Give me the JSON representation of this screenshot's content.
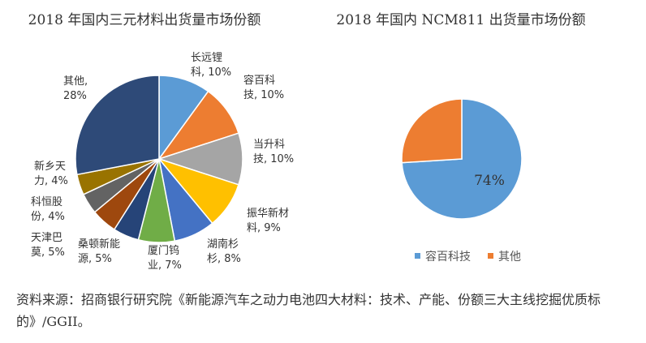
{
  "chart_data": [
    {
      "type": "pie",
      "title": "2018 年国内三元材料出货量市场份额",
      "slices": [
        {
          "label": [
            "长远锂",
            "科, 10%"
          ],
          "value": 10,
          "color": "#5b9bd5"
        },
        {
          "label": [
            "容百科",
            "技, 10%"
          ],
          "value": 10,
          "color": "#ed7d31"
        },
        {
          "label": [
            "当升科",
            "技, 10%"
          ],
          "value": 10,
          "color": "#a5a5a5"
        },
        {
          "label": [
            "振华新材",
            "料, 9%"
          ],
          "value": 9,
          "color": "#ffc000"
        },
        {
          "label": [
            "湖南杉",
            "杉, 8%"
          ],
          "value": 8,
          "color": "#4472c4"
        },
        {
          "label": [
            "厦门钨",
            "业, 7%"
          ],
          "value": 7,
          "color": "#70ad47"
        },
        {
          "label": [
            "桑顿新能",
            "源, 5%"
          ],
          "value": 5,
          "color": "#264478"
        },
        {
          "label": [
            "天津巴",
            "莫, 5%"
          ],
          "value": 5,
          "color": "#9e480e"
        },
        {
          "label": [
            "科恒股",
            "份, 4%"
          ],
          "value": 4,
          "color": "#636363"
        },
        {
          "label": [
            "新乡天",
            "力, 4%"
          ],
          "value": 4,
          "color": "#997300"
        },
        {
          "label": [
            "其他,",
            "28%"
          ],
          "value": 28,
          "color": "#2e4a78"
        }
      ]
    },
    {
      "type": "pie",
      "title": "2018 年国内 NCM811 出货量市场份额",
      "slices": [
        {
          "name": "容百科技",
          "value": 74,
          "label": "74%",
          "color": "#5b9bd5"
        },
        {
          "name": "其他",
          "value": 26,
          "label": "",
          "color": "#ed7d31"
        }
      ],
      "legend": "bottom"
    }
  ],
  "source_note": "资料来源：招商银行研究院《新能源汽车之动力电池四大材料：技术、产能、份额三大主线挖掘优质标的》/GGII。"
}
